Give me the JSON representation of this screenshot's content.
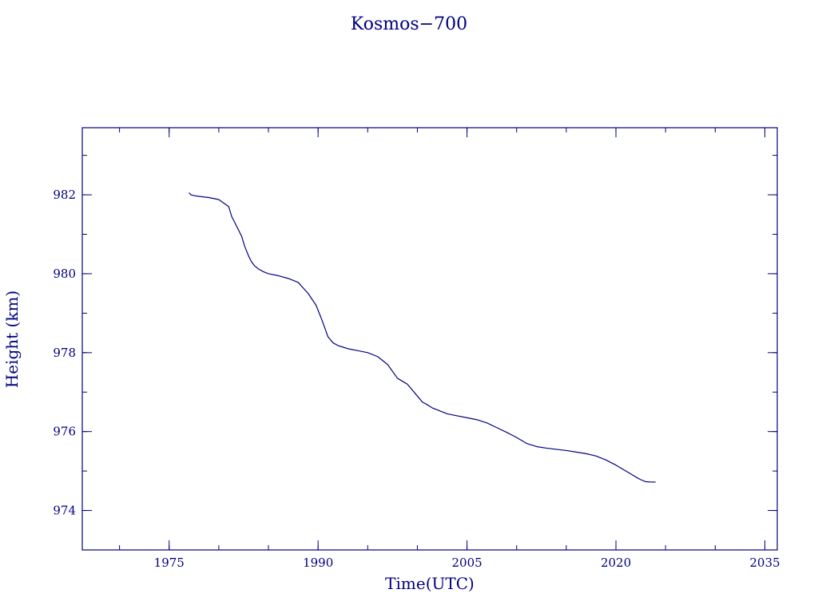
{
  "chart_data": {
    "type": "line",
    "title": "Kosmos−700",
    "xlabel": "Time(UTC)",
    "ylabel": "Height (km)",
    "xlim": [
      1966.25,
      2036.25
    ],
    "ylim": [
      973.0,
      983.7
    ],
    "x_ticks": [
      1975,
      1990,
      2005,
      2020,
      2035
    ],
    "x_tick_labels": [
      "1975",
      "1990",
      "2005",
      "2020",
      "2035"
    ],
    "x_minor_step": 5,
    "y_ticks": [
      974,
      976,
      978,
      980,
      982
    ],
    "y_tick_labels": [
      "974",
      "976",
      "978",
      "980",
      "982"
    ],
    "y_minor_step": 1,
    "grid": false,
    "color": "#000080",
    "series": [
      {
        "x": [
          1977.0,
          1977.2,
          1977.5,
          1978.0,
          1979.0,
          1980.0,
          1981.0,
          1981.3,
          1981.6,
          1982.0,
          1982.3,
          1982.6,
          1983.0,
          1983.3,
          1983.6,
          1984.0,
          1984.5,
          1985.0,
          1986.0,
          1987.0,
          1988.0,
          1989.0,
          1989.8,
          1990.2,
          1990.5,
          1991.0,
          1991.5,
          1992.0,
          1992.5,
          1993.0,
          1994.0,
          1995.0,
          1996.0,
          1997.0,
          1998.0,
          1999.0,
          2000.0,
          2000.5,
          2001.0,
          2001.5,
          2002.0,
          2002.5,
          2003.0,
          2004.0,
          2005.0,
          2006.0,
          2007.0,
          2008.0,
          2009.0,
          2010.0,
          2011.0,
          2012.0,
          2013.0,
          2014.0,
          2015.0,
          2016.0,
          2017.0,
          2018.0,
          2019.0,
          2020.0,
          2021.0,
          2022.0,
          2022.5,
          2023.0,
          2023.5,
          2024.0
        ],
        "y": [
          982.05,
          982.0,
          981.98,
          981.96,
          981.93,
          981.88,
          981.7,
          981.45,
          981.3,
          981.1,
          980.95,
          980.7,
          980.45,
          980.3,
          980.2,
          980.12,
          980.05,
          980.0,
          979.95,
          979.88,
          979.78,
          979.5,
          979.2,
          978.95,
          978.75,
          978.4,
          978.25,
          978.18,
          978.14,
          978.1,
          978.05,
          978.0,
          977.9,
          977.7,
          977.35,
          977.2,
          976.9,
          976.75,
          976.68,
          976.6,
          976.55,
          976.5,
          976.45,
          976.4,
          976.35,
          976.3,
          976.22,
          976.1,
          975.98,
          975.85,
          975.7,
          975.62,
          975.58,
          975.55,
          975.52,
          975.48,
          975.44,
          975.38,
          975.28,
          975.15,
          975.0,
          974.85,
          974.78,
          974.73,
          974.72,
          974.72
        ]
      }
    ]
  }
}
